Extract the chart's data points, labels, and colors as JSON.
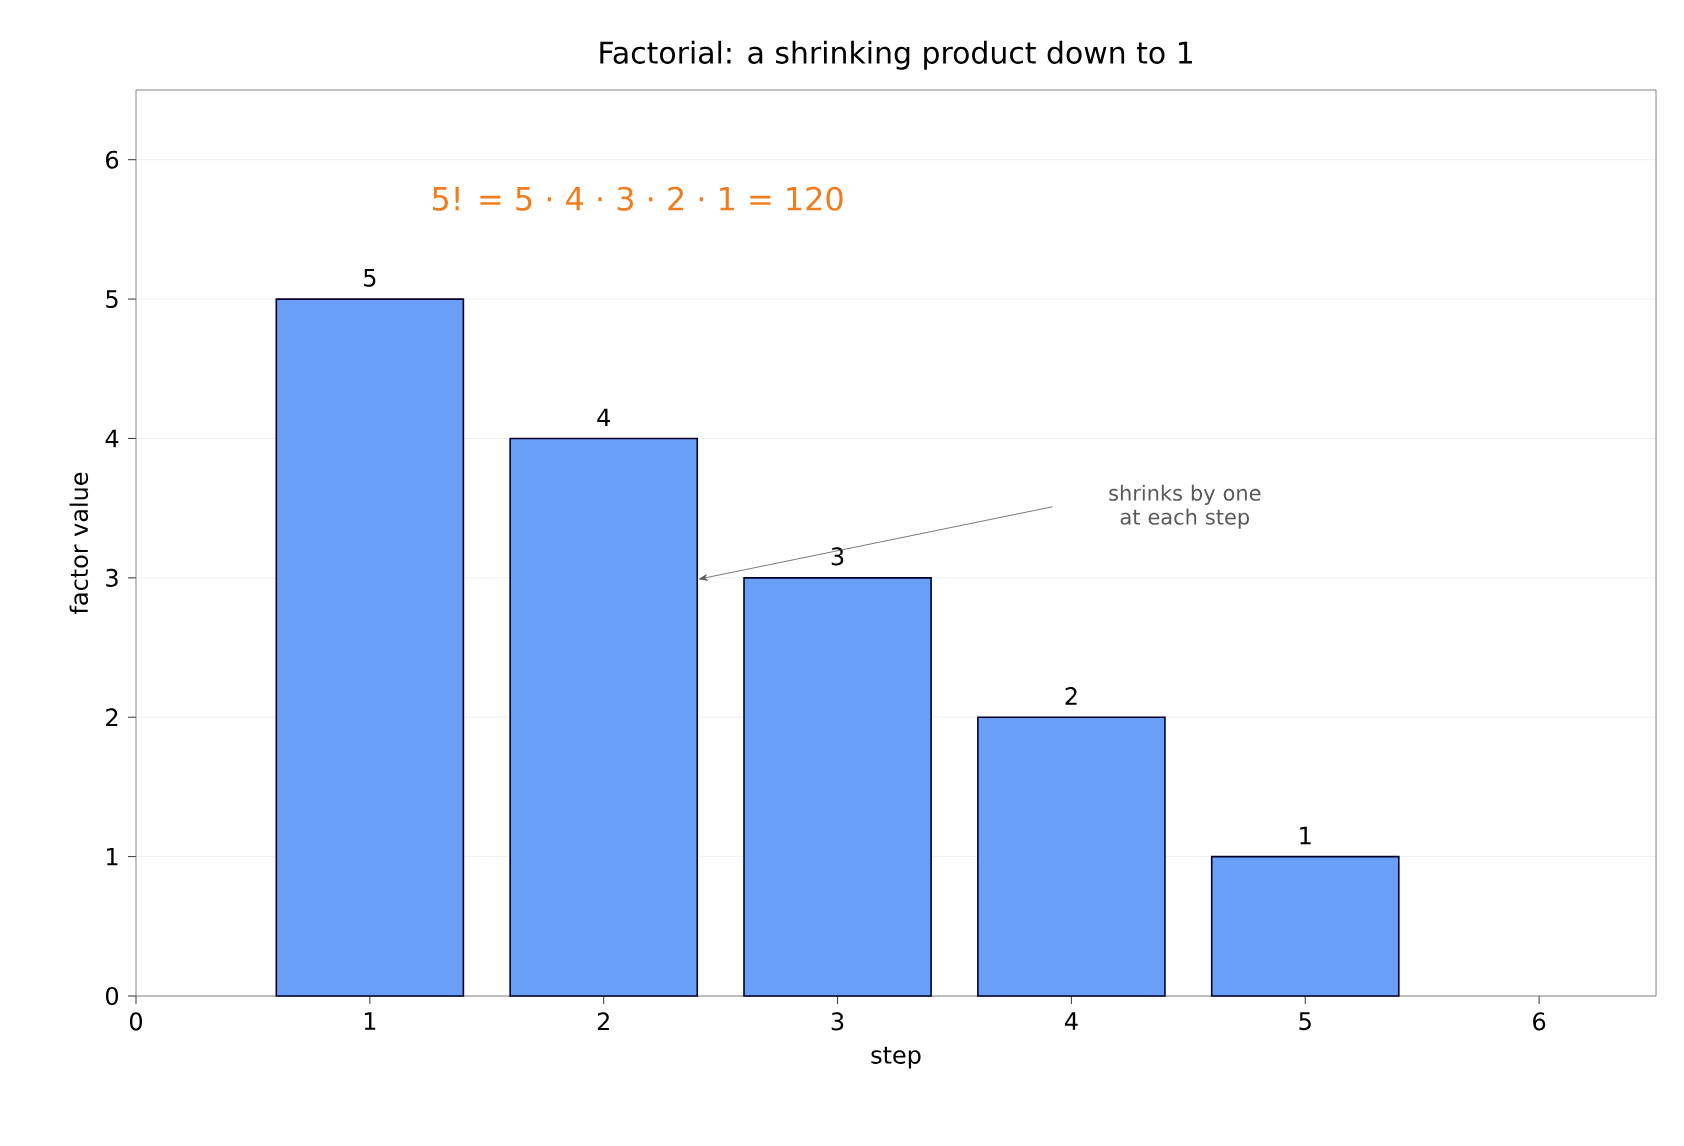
{
  "chart_data": {
    "type": "bar",
    "title": "Factorial: a shrinking product down to 1",
    "xlabel": "step",
    "ylabel": "factor value",
    "x": [
      1,
      2,
      3,
      4,
      5
    ],
    "values": [
      5,
      4,
      3,
      2,
      1
    ],
    "color": "#6a9ff7",
    "xlim": [
      0,
      6.5
    ],
    "ylim": [
      0,
      6.5
    ],
    "xticks": [
      0,
      1,
      2,
      3,
      4,
      5,
      6
    ],
    "yticks": [
      0,
      1,
      2,
      3,
      4,
      5,
      6
    ],
    "grid": "y",
    "data_labels": true,
    "annotations": [
      "5! = 5 · 4 · 3 · 2 · 1 = 120",
      "shrinks by one at each step"
    ]
  }
}
